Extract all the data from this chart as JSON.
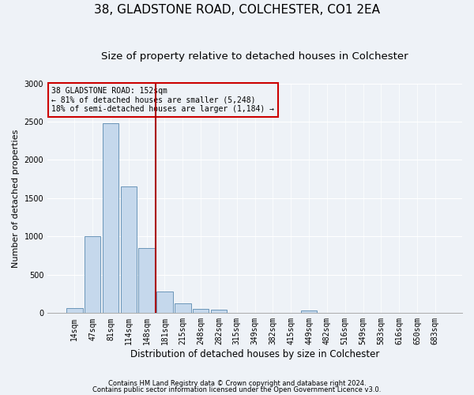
{
  "title1": "38, GLADSTONE ROAD, COLCHESTER, CO1 2EA",
  "title2": "Size of property relative to detached houses in Colchester",
  "xlabel": "Distribution of detached houses by size in Colchester",
  "ylabel": "Number of detached properties",
  "categories": [
    "14sqm",
    "47sqm",
    "81sqm",
    "114sqm",
    "148sqm",
    "181sqm",
    "215sqm",
    "248sqm",
    "282sqm",
    "315sqm",
    "349sqm",
    "382sqm",
    "415sqm",
    "449sqm",
    "482sqm",
    "516sqm",
    "549sqm",
    "583sqm",
    "616sqm",
    "650sqm",
    "683sqm"
  ],
  "values": [
    70,
    1000,
    2480,
    1650,
    850,
    280,
    130,
    50,
    45,
    0,
    0,
    0,
    0,
    30,
    0,
    0,
    0,
    0,
    0,
    0,
    0
  ],
  "bar_color": "#c5d8ec",
  "bar_edge_color": "#5a8ab0",
  "vline_color": "#aa0000",
  "annotation_text1": "38 GLADSTONE ROAD: 152sqm",
  "annotation_text2": "← 81% of detached houses are smaller (5,248)",
  "annotation_text3": "18% of semi-detached houses are larger (1,184) →",
  "annotation_box_color": "#cc0000",
  "ylim": [
    0,
    3000
  ],
  "yticks": [
    0,
    500,
    1000,
    1500,
    2000,
    2500,
    3000
  ],
  "footnote1": "Contains HM Land Registry data © Crown copyright and database right 2024.",
  "footnote2": "Contains public sector information licensed under the Open Government Licence v3.0.",
  "background_color": "#eef2f7",
  "grid_color": "#ffffff",
  "title_fontsize": 11,
  "subtitle_fontsize": 9.5,
  "tick_fontsize": 7,
  "ylabel_fontsize": 8,
  "xlabel_fontsize": 8.5,
  "footnote_fontsize": 6
}
